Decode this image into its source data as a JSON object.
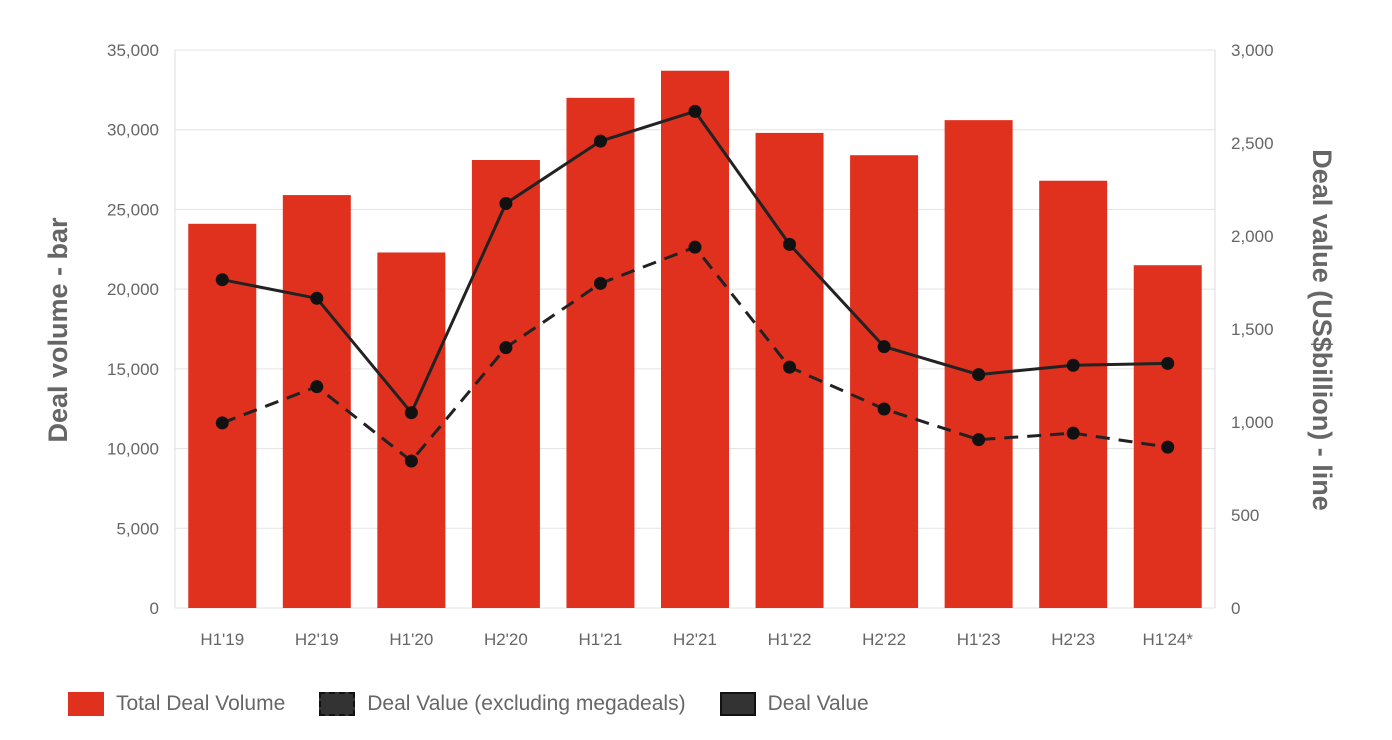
{
  "chart_data": {
    "type": "bar",
    "categories": [
      "H1'19",
      "H2'19",
      "H1'20",
      "H2'20",
      "H1'21",
      "H2'21",
      "H1'22",
      "H2'22",
      "H1'23",
      "H2'23",
      "H1'24*"
    ],
    "series": [
      {
        "name": "Total Deal Volume",
        "type": "bar",
        "axis": "left",
        "color": "#e0301e",
        "values": [
          24100,
          25900,
          22300,
          28100,
          32000,
          33700,
          29800,
          28400,
          30600,
          26800,
          21500
        ]
      },
      {
        "name": "Deal Value (excluding megadeals)",
        "type": "line",
        "style": "dashed",
        "axis": "right",
        "color": "#222222",
        "values": [
          995,
          1190,
          790,
          1400,
          1745,
          1940,
          1295,
          1070,
          905,
          940,
          865
        ]
      },
      {
        "name": "Deal Value",
        "type": "line",
        "style": "solid",
        "axis": "right",
        "color": "#222222",
        "values": [
          1765,
          1665,
          1050,
          2175,
          2510,
          2670,
          1955,
          1405,
          1255,
          1305,
          1315
        ]
      }
    ],
    "ylabel": "Deal volume - bar",
    "y2label": "Deal value (US$billion) - line",
    "ylim": [
      0,
      35000
    ],
    "y2lim": [
      0,
      3000
    ],
    "yticks": [
      "0",
      "5,000",
      "10,000",
      "15,000",
      "20,000",
      "25,000",
      "30,000",
      "35,000"
    ],
    "y2ticks": [
      "0",
      "500",
      "1,000",
      "1,500",
      "2,000",
      "2,500",
      "3,000"
    ],
    "grid": true,
    "legend_position": "bottom-left"
  }
}
